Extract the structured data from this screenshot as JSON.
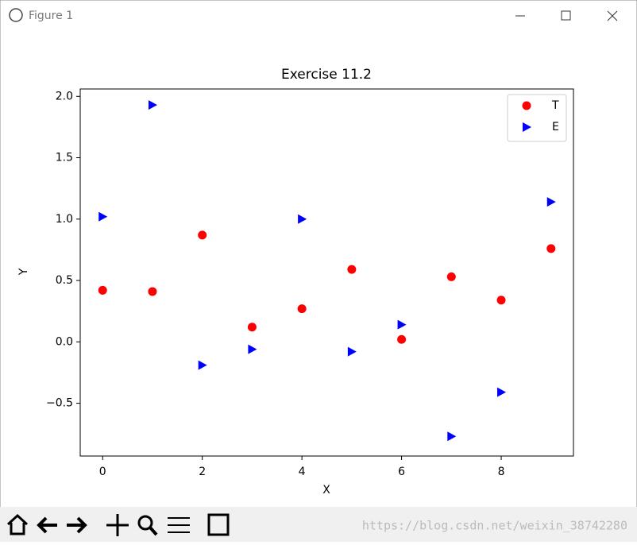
{
  "window": {
    "title": "Figure 1",
    "watermark": "https://blog.csdn.net/weixin_38742280"
  },
  "chart_data": {
    "type": "scatter",
    "title": "Exercise 11.2",
    "x_label": "X",
    "y_label": "Y",
    "x": [
      0,
      1,
      2,
      3,
      4,
      5,
      6,
      7,
      8,
      9
    ],
    "series": [
      {
        "name": "T",
        "color": "#ff0000",
        "marker": "circle",
        "values": [
          0.42,
          0.41,
          0.87,
          0.12,
          0.27,
          0.59,
          0.02,
          0.53,
          0.34,
          0.76
        ]
      },
      {
        "name": "E",
        "color": "#0000ff",
        "marker": "triangle-right",
        "values": [
          1.02,
          1.93,
          -0.19,
          -0.06,
          1.0,
          -0.08,
          0.14,
          -0.77,
          -0.41,
          1.14
        ]
      }
    ],
    "xlim": [
      -0.45,
      9.45
    ],
    "ylim": [
      -0.93,
      2.06
    ],
    "xticks": [
      0,
      2,
      4,
      6,
      8
    ],
    "yticks": [
      {
        "value": -0.5,
        "label": "−0.5"
      },
      {
        "value": 0,
        "label": "0.0"
      },
      0.5,
      {
        "value": 1,
        "label": "1.0"
      },
      1.5,
      {
        "value": 2,
        "label": "2.0"
      }
    ],
    "legend": "upper right",
    "grid": false
  }
}
